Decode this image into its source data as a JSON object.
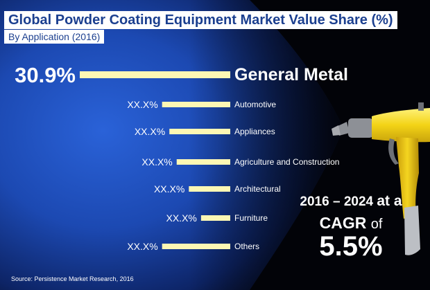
{
  "title": "Global Powder Coating Equipment Market Value Share (%)",
  "subtitle": "By Application (2016)",
  "chart_data": {
    "type": "bar",
    "orientation": "horizontal",
    "categories": [
      "General Metal",
      "Automotive",
      "Appliances",
      "Agriculture and Construction",
      "Architectural",
      "Furniture",
      "Others"
    ],
    "value_labels": [
      "30.9%",
      "XX.X%",
      "XX.X%",
      "XX.X%",
      "XX.X%",
      "XX.X%",
      "XX.X%"
    ],
    "values": [
      30.9,
      14.0,
      12.5,
      11.0,
      8.5,
      6.0,
      14.0
    ],
    "bar_color": "#fdf7b4",
    "highlight_category": "General Metal"
  },
  "cagr": {
    "period": "2016 – 2024",
    "at_a": "at a",
    "label": "CAGR",
    "of": "of",
    "value": "5.5%"
  },
  "source": "Source: Persistence Market Research, 2016",
  "colors": {
    "background": "#020308",
    "blue_glow": "#1a4bb8",
    "title_text": "#1b3f8f",
    "gun_yellow": "#f3d316",
    "gun_grey": "#8d9096"
  },
  "decor": {
    "spray_gun": "powder-coating-spray-gun-icon"
  }
}
